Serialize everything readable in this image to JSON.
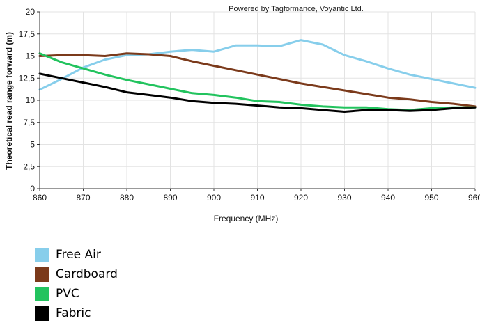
{
  "chart_data": {
    "type": "line",
    "credit": "Powered by Tagformance, Voyantic Ltd.",
    "xlabel": "Frequency (MHz)",
    "ylabel": "Theoretical read range forward (m)",
    "xlim": [
      860,
      960
    ],
    "ylim": [
      0,
      20
    ],
    "xticks": [
      "860",
      "870",
      "880",
      "890",
      "900",
      "910",
      "920",
      "930",
      "940",
      "950",
      "960"
    ],
    "yticks": [
      "0",
      "2,5",
      "5",
      "7,5",
      "10",
      "12,5",
      "15",
      "17,5",
      "20"
    ],
    "grid": true,
    "legend_position": "bottom-left",
    "series": [
      {
        "name": "Free Air",
        "color": "#87ceeb",
        "x": [
          860,
          865,
          870,
          875,
          880,
          885,
          890,
          895,
          900,
          905,
          910,
          915,
          920,
          925,
          930,
          935,
          940,
          945,
          950,
          955,
          960
        ],
        "y": [
          11.2,
          12.4,
          13.7,
          14.6,
          15.1,
          15.2,
          15.5,
          15.7,
          15.5,
          16.2,
          16.2,
          16.1,
          16.8,
          16.3,
          15.1,
          14.4,
          13.6,
          12.9,
          12.4,
          11.9,
          11.4
        ]
      },
      {
        "name": "Cardboard",
        "color": "#7b3a1b",
        "x": [
          860,
          865,
          870,
          875,
          880,
          885,
          890,
          895,
          900,
          905,
          910,
          915,
          920,
          925,
          930,
          935,
          940,
          945,
          950,
          955,
          960
        ],
        "y": [
          15.0,
          15.1,
          15.1,
          15.0,
          15.3,
          15.2,
          15.0,
          14.4,
          13.9,
          13.4,
          12.9,
          12.4,
          11.9,
          11.5,
          11.1,
          10.7,
          10.3,
          10.1,
          9.8,
          9.6,
          9.3
        ]
      },
      {
        "name": "PVC",
        "color": "#22c35e",
        "x": [
          860,
          865,
          870,
          875,
          880,
          885,
          890,
          895,
          900,
          905,
          910,
          915,
          920,
          925,
          930,
          935,
          940,
          945,
          950,
          955,
          960
        ],
        "y": [
          15.3,
          14.3,
          13.6,
          12.9,
          12.3,
          11.8,
          11.3,
          10.8,
          10.6,
          10.3,
          9.9,
          9.8,
          9.5,
          9.3,
          9.2,
          9.2,
          9.0,
          8.9,
          9.1,
          9.2,
          9.2
        ]
      },
      {
        "name": "Fabric",
        "color": "#000000",
        "x": [
          860,
          865,
          870,
          875,
          880,
          885,
          890,
          895,
          900,
          905,
          910,
          915,
          920,
          925,
          930,
          935,
          940,
          945,
          950,
          955,
          960
        ],
        "y": [
          13.0,
          12.5,
          12.0,
          11.5,
          10.9,
          10.6,
          10.3,
          9.9,
          9.7,
          9.6,
          9.4,
          9.2,
          9.1,
          8.9,
          8.7,
          8.9,
          8.9,
          8.8,
          8.9,
          9.1,
          9.2
        ]
      }
    ]
  }
}
